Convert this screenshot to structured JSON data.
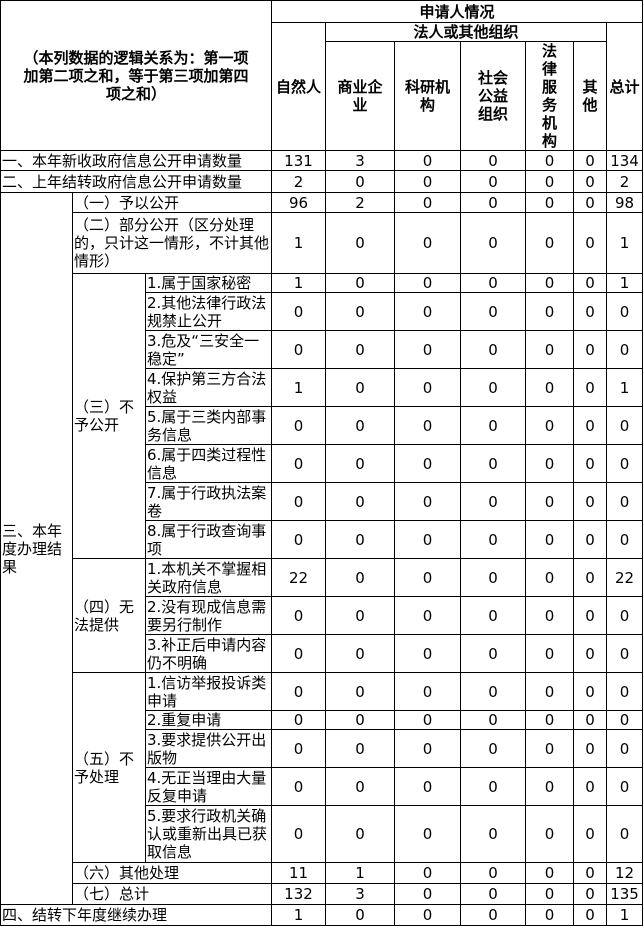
{
  "header": {
    "note": "（本列数据的逻辑关系为：第一项加第二项之和，等于第三项加第四项之和）",
    "applicant": "申请人情况",
    "natural_person": "自然人",
    "legal_org": "法人或其他组织",
    "org_columns": [
      "商业企业",
      "科研机构",
      "社会公益组织",
      "法律服务机构",
      "其他"
    ],
    "total": "总计"
  },
  "rows_top": [
    {
      "label": "一、本年新收政府信息公开申请数量",
      "values": [
        131,
        3,
        0,
        0,
        0,
        0,
        134
      ]
    },
    {
      "label": "二、上年结转政府信息公开申请数量",
      "values": [
        2,
        0,
        0,
        0,
        0,
        0,
        2
      ]
    }
  ],
  "section3": {
    "label": "三、本年度办理结果",
    "groups": [
      {
        "label": "（一）予以公开",
        "values": [
          96,
          2,
          0,
          0,
          0,
          0,
          98
        ]
      },
      {
        "label": "（二）部分公开（区分处理的，只计这一情形，不计其他情形）",
        "values": [
          1,
          0,
          0,
          0,
          0,
          0,
          1
        ]
      },
      {
        "label": "（三）不予公开",
        "items": [
          {
            "label": "1.属于国家秘密",
            "values": [
              1,
              0,
              0,
              0,
              0,
              0,
              1
            ]
          },
          {
            "label": "2.其他法律行政法规禁止公开",
            "values": [
              0,
              0,
              0,
              0,
              0,
              0,
              0
            ]
          },
          {
            "label": "3.危及“三安全一稳定”",
            "values": [
              0,
              0,
              0,
              0,
              0,
              0,
              0
            ]
          },
          {
            "label": "4.保护第三方合法权益",
            "values": [
              1,
              0,
              0,
              0,
              0,
              0,
              1
            ]
          },
          {
            "label": "5.属于三类内部事务信息",
            "values": [
              0,
              0,
              0,
              0,
              0,
              0,
              0
            ]
          },
          {
            "label": "6.属于四类过程性信息",
            "values": [
              0,
              0,
              0,
              0,
              0,
              0,
              0
            ]
          },
          {
            "label": "7.属于行政执法案卷",
            "values": [
              0,
              0,
              0,
              0,
              0,
              0,
              0
            ]
          },
          {
            "label": "8.属于行政查询事项",
            "values": [
              0,
              0,
              0,
              0,
              0,
              0,
              0
            ]
          }
        ]
      },
      {
        "label": "（四）无法提供",
        "items": [
          {
            "label": "1.本机关不掌握相关政府信息",
            "values": [
              22,
              0,
              0,
              0,
              0,
              0,
              22
            ]
          },
          {
            "label": "2.没有现成信息需要另行制作",
            "values": [
              0,
              0,
              0,
              0,
              0,
              0,
              0
            ]
          },
          {
            "label": "3.补正后申请内容仍不明确",
            "values": [
              0,
              0,
              0,
              0,
              0,
              0,
              0
            ]
          }
        ]
      },
      {
        "label": "（五）不予处理",
        "items": [
          {
            "label": "1.信访举报投诉类申请",
            "values": [
              0,
              0,
              0,
              0,
              0,
              0,
              0
            ]
          },
          {
            "label": "2.重复申请",
            "values": [
              0,
              0,
              0,
              0,
              0,
              0,
              0
            ]
          },
          {
            "label": "3.要求提供公开出版物",
            "values": [
              0,
              0,
              0,
              0,
              0,
              0,
              0
            ]
          },
          {
            "label": "4.无正当理由大量反复申请",
            "values": [
              0,
              0,
              0,
              0,
              0,
              0,
              0
            ]
          },
          {
            "label": "5.要求行政机关确认或重新出具已获取信息",
            "values": [
              0,
              0,
              0,
              0,
              0,
              0,
              0
            ]
          }
        ]
      },
      {
        "label": "（六）其他处理",
        "values": [
          11,
          1,
          0,
          0,
          0,
          0,
          12
        ]
      },
      {
        "label": "（七）总计",
        "values": [
          132,
          3,
          0,
          0,
          0,
          0,
          135
        ]
      }
    ]
  },
  "rows_bottom": [
    {
      "label": "四、结转下年度继续办理",
      "values": [
        1,
        0,
        0,
        0,
        0,
        0,
        1
      ]
    }
  ]
}
